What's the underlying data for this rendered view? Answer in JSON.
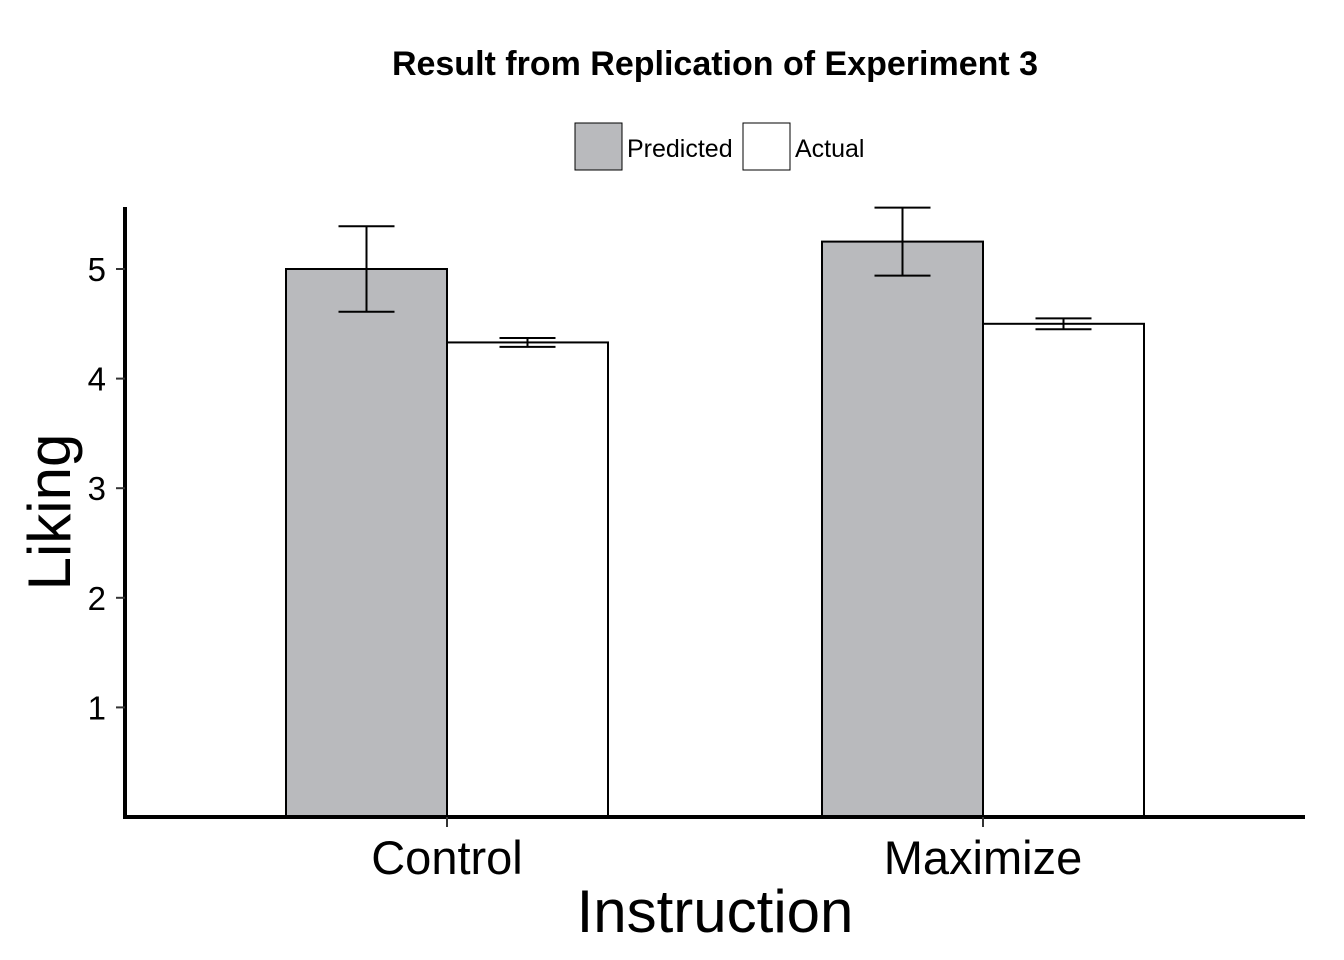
{
  "chart_data": {
    "type": "bar",
    "title": "Result from Replication of Experiment 3",
    "xlabel": "Instruction",
    "ylabel": "Liking",
    "categories": [
      "Control",
      "Maximize"
    ],
    "series": [
      {
        "name": "Predicted",
        "color": "#b9babd",
        "values": [
          5.0,
          5.25
        ],
        "error_low": [
          4.61,
          4.94
        ],
        "error_high": [
          5.39,
          5.56
        ]
      },
      {
        "name": "Actual",
        "color": "#ffffff",
        "values": [
          4.33,
          4.5
        ],
        "error_low": [
          4.29,
          4.45
        ],
        "error_high": [
          4.37,
          4.55
        ]
      }
    ],
    "yticks": [
      "1",
      "2",
      "3",
      "4",
      "5"
    ],
    "ylim": [
      0,
      5.55
    ],
    "grid": false,
    "legend_position": "top"
  }
}
